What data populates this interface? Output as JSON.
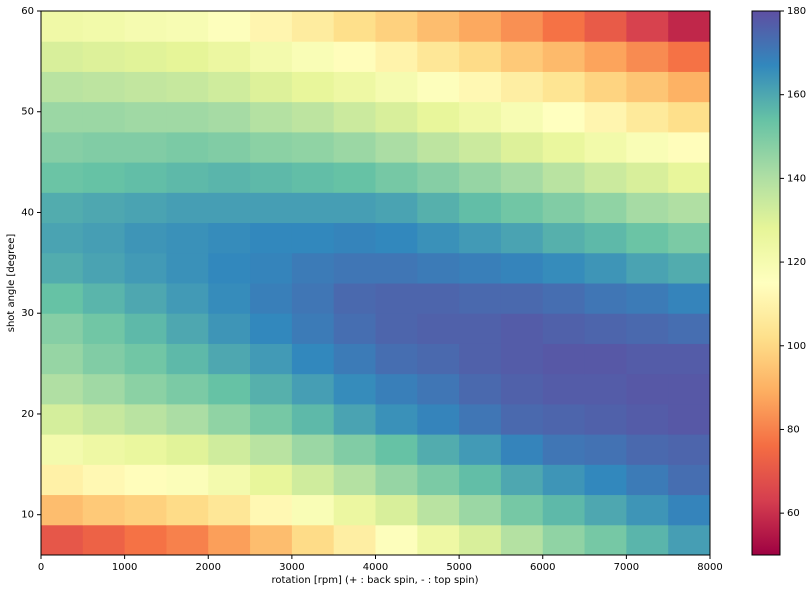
{
  "chart_data": {
    "type": "heatmap",
    "xlabel": "rotation [rpm] (+ : back spin, - : top spin)",
    "ylabel": "shot angle [degree]",
    "xlim": [
      0,
      8000
    ],
    "ylim": [
      6,
      60
    ],
    "xticks": [
      0,
      1000,
      2000,
      3000,
      4000,
      5000,
      6000,
      7000,
      8000
    ],
    "yticks": [
      10,
      20,
      30,
      40,
      50,
      60
    ],
    "xbins": [
      0,
      500,
      1000,
      1500,
      2000,
      2500,
      3000,
      3500,
      4000,
      4500,
      5000,
      5500,
      6000,
      6500,
      7000,
      7500,
      8000
    ],
    "ybins": [
      6,
      9,
      12,
      15,
      18,
      21,
      24,
      27,
      30,
      33,
      36,
      39,
      42,
      45,
      48,
      51,
      54,
      57,
      60
    ],
    "clim": [
      50,
      180
    ],
    "cticks": [
      60,
      80,
      100,
      120,
      140,
      160,
      180
    ],
    "colormap": [
      "#9e0142",
      "#d53e4f",
      "#f46d43",
      "#fdae61",
      "#fee08b",
      "#ffffbf",
      "#e6f598",
      "#abdda4",
      "#66c2a5",
      "#3288bd",
      "#5e4fa2"
    ],
    "z": [
      [
        70,
        73,
        77,
        80,
        86,
        93,
        101,
        108,
        116,
        124,
        131,
        139,
        146,
        151,
        157,
        162
      ],
      [
        93,
        96,
        98,
        101,
        105,
        112,
        118,
        125,
        131,
        138,
        144,
        151,
        156,
        160,
        164,
        168
      ],
      [
        109,
        112,
        114,
        117,
        121,
        127,
        133,
        139,
        145,
        150,
        155,
        160,
        164,
        167,
        170,
        173
      ],
      [
        121,
        124,
        126,
        129,
        133,
        138,
        144,
        149,
        154,
        159,
        163,
        168,
        171,
        172,
        174,
        175
      ],
      [
        132,
        135,
        138,
        141,
        146,
        151,
        156,
        161,
        165,
        168,
        171,
        174,
        175,
        176,
        177,
        178
      ],
      [
        140,
        143,
        147,
        150,
        154,
        158,
        162,
        166,
        169,
        171,
        174,
        176,
        177,
        177,
        178,
        178
      ],
      [
        145,
        149,
        152,
        156,
        160,
        163,
        167,
        170,
        173,
        174,
        176,
        177,
        178,
        178,
        177,
        177
      ],
      [
        148,
        152,
        156,
        160,
        164,
        167,
        170,
        173,
        175,
        176,
        176,
        177,
        176,
        175,
        174,
        173
      ],
      [
        154,
        157,
        160,
        163,
        166,
        169,
        171,
        174,
        175,
        175,
        174,
        174,
        173,
        171,
        170,
        168
      ],
      [
        159,
        161,
        163,
        165,
        167,
        168,
        170,
        171,
        171,
        170,
        169,
        168,
        166,
        164,
        161,
        159
      ],
      [
        161,
        162,
        164,
        165,
        166,
        167,
        167,
        168,
        167,
        165,
        163,
        161,
        158,
        156,
        153,
        150
      ],
      [
        159,
        160,
        161,
        162,
        162,
        162,
        162,
        162,
        161,
        158,
        155,
        152,
        149,
        146,
        142,
        140
      ],
      [
        153,
        154,
        155,
        156,
        157,
        156,
        155,
        154,
        151,
        148,
        145,
        142,
        138,
        134,
        131,
        127
      ],
      [
        148,
        149,
        149,
        150,
        149,
        147,
        146,
        144,
        141,
        137,
        134,
        130,
        126,
        122,
        118,
        114
      ],
      [
        144,
        144,
        143,
        143,
        142,
        139,
        137,
        134,
        131,
        127,
        123,
        119,
        115,
        111,
        106,
        102
      ],
      [
        138,
        137,
        136,
        135,
        133,
        130,
        127,
        124,
        120,
        116,
        112,
        108,
        104,
        99,
        95,
        90
      ],
      [
        131,
        130,
        129,
        128,
        125,
        121,
        118,
        114,
        110,
        105,
        101,
        96,
        92,
        87,
        82,
        77
      ],
      [
        123,
        122,
        120,
        119,
        116,
        111,
        107,
        102,
        98,
        93,
        88,
        83,
        77,
        71,
        64,
        58
      ]
    ]
  }
}
